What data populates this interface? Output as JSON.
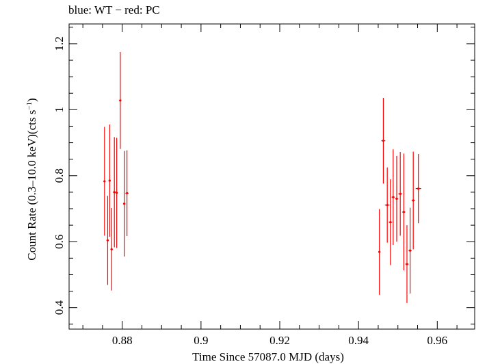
{
  "chart_data": {
    "type": "scatter",
    "title": "blue: WT − red: PC",
    "xlabel": "Time Since 57087.0 MJD (days)",
    "ylabel_main": "Count Rate (0.3–10.0 keV)(cts s",
    "ylabel_sup": "−1",
    "ylabel_close": ")",
    "xlim": [
      0.8665,
      0.9695
    ],
    "ylim": [
      0.335,
      1.26
    ],
    "xticks": [
      0.88,
      0.9,
      0.92,
      0.94,
      0.96
    ],
    "xtick_labels": [
      "0.88",
      "0.9",
      "0.92",
      "0.94",
      "0.96"
    ],
    "yticks": [
      0.4,
      0.6,
      0.8,
      1.0,
      1.2
    ],
    "ytick_labels": [
      "0.4",
      "0.6",
      "0.8",
      "1",
      "1.2"
    ],
    "grid": false,
    "series": [
      {
        "color": "#ff0000",
        "x": [
          0.8755,
          0.8763,
          0.8768,
          0.8773,
          0.878,
          0.8786,
          0.8795,
          0.8805,
          0.8812,
          0.9453,
          0.9463,
          0.9473,
          0.9481,
          0.9488,
          0.9497,
          0.9506,
          0.9515,
          0.9523,
          0.9531,
          0.9539,
          0.9552
        ],
        "y": [
          0.783,
          0.604,
          0.785,
          0.577,
          0.75,
          0.748,
          1.028,
          0.715,
          0.747,
          0.569,
          0.906,
          0.711,
          0.659,
          0.735,
          0.73,
          0.745,
          0.69,
          0.532,
          0.573,
          0.725,
          0.761
        ],
        "yerr": [
          0.165,
          0.135,
          0.17,
          0.125,
          0.167,
          0.167,
          0.147,
          0.16,
          0.13,
          0.13,
          0.13,
          0.114,
          0.13,
          0.145,
          0.13,
          0.127,
          0.177,
          0.118,
          0.13,
          0.148,
          0.105
        ],
        "xerr": [
          0.0003,
          0.0003,
          0.0003,
          0.0003,
          0.0004,
          0.0003,
          0.0003,
          0.0003,
          0.0004,
          0.0003,
          0.0005,
          0.0006,
          0.0004,
          0.0004,
          0.0004,
          0.0005,
          0.0004,
          0.0004,
          0.0004,
          0.0004,
          0.0007
        ]
      }
    ]
  }
}
